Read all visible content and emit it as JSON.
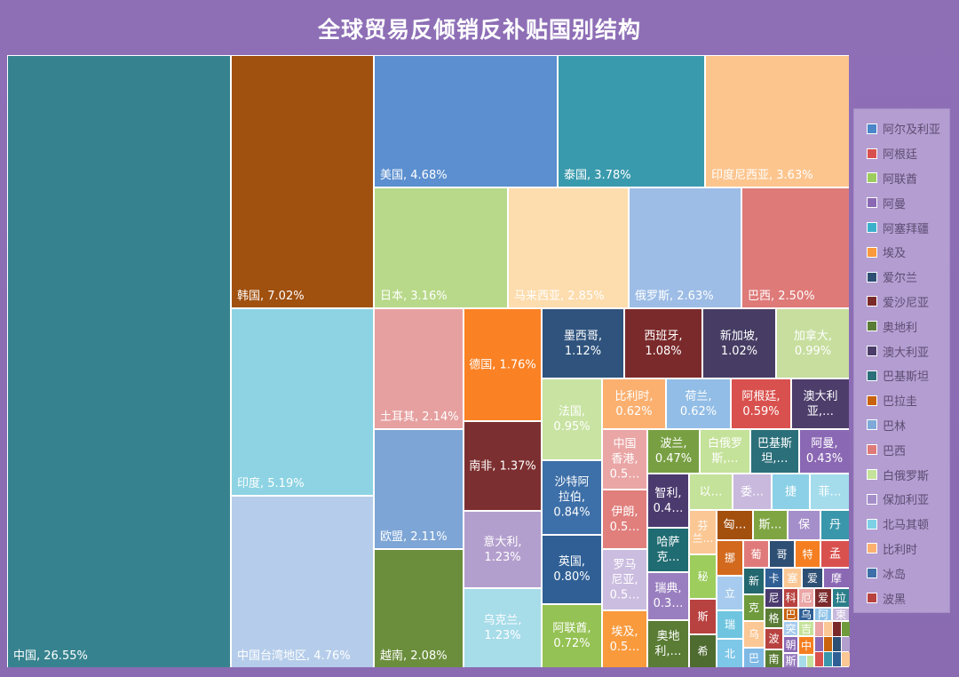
{
  "chart_data": {
    "type": "treemap",
    "title": "全球贸易反倾销反补贴国别结构",
    "unit": "%",
    "items": [
      {
        "name": "中国",
        "value": 26.55,
        "label": "中国, 26.55%",
        "color": "#36838f"
      },
      {
        "name": "韩国",
        "value": 7.02,
        "label": "韩国, 7.02%",
        "color": "#a0500f"
      },
      {
        "name": "印度",
        "value": 5.19,
        "label": "印度, 5.19%",
        "color": "#8dd3e3"
      },
      {
        "name": "中国台湾地区",
        "value": 4.76,
        "label": "中国台湾地区, 4.76%",
        "color": "#b5cdea"
      },
      {
        "name": "美国",
        "value": 4.68,
        "label": "美国, 4.68%",
        "color": "#5b8fcf"
      },
      {
        "name": "泰国",
        "value": 3.78,
        "label": "泰国, 3.78%",
        "color": "#3a9aad"
      },
      {
        "name": "印度尼西亚",
        "value": 3.63,
        "label": "印度尼西亚, 3.63%",
        "color": "#fdc58e"
      },
      {
        "name": "日本",
        "value": 3.16,
        "label": "日本, 3.16%",
        "color": "#b8d98a"
      },
      {
        "name": "马来西亚",
        "value": 2.85,
        "label": "马来西亚, 2.85%",
        "color": "#fddcad"
      },
      {
        "name": "俄罗斯",
        "value": 2.63,
        "label": "俄罗斯, 2.63%",
        "color": "#9dbde6"
      },
      {
        "name": "巴西",
        "value": 2.5,
        "label": "巴西, 2.50%",
        "color": "#de7a78"
      },
      {
        "name": "土耳其",
        "value": 2.14,
        "label": "土耳其, 2.14%",
        "color": "#e6a0a0"
      },
      {
        "name": "欧盟",
        "value": 2.11,
        "label": "欧盟, 2.11%",
        "color": "#7da5d6"
      },
      {
        "name": "越南",
        "value": 2.08,
        "label": "越南, 2.08%",
        "color": "#6b8e3c"
      },
      {
        "name": "德国",
        "value": 1.76,
        "label": "德国, 1.76%",
        "color": "#fa8124"
      },
      {
        "name": "南非",
        "value": 1.37,
        "label": "南非, 1.37%",
        "color": "#7c2f30"
      },
      {
        "name": "意大利",
        "value": 1.23,
        "label": "意大利,\n1.23%",
        "color": "#b39fcd"
      },
      {
        "name": "乌克兰",
        "value": 1.23,
        "label": "乌克兰,\n1.23%",
        "color": "#a7dce9"
      },
      {
        "name": "墨西哥",
        "value": 1.12,
        "label": "墨西哥,\n1.12%",
        "color": "#2f537d"
      },
      {
        "name": "西班牙",
        "value": 1.08,
        "label": "西班牙,\n1.08%",
        "color": "#7b2a2b"
      },
      {
        "name": "新加坡",
        "value": 1.02,
        "label": "新加坡,\n1.02%",
        "color": "#473d64"
      },
      {
        "name": "加拿大",
        "value": 0.99,
        "label": "加拿大,\n0.99%",
        "color": "#c7de9e"
      },
      {
        "name": "法国",
        "value": 0.95,
        "label": "法国,\n0.95%",
        "color": "#c8e3a2"
      },
      {
        "name": "比利时",
        "value": 0.62,
        "label": "比利时,\n0.62%",
        "color": "#fbb070"
      },
      {
        "name": "荷兰",
        "value": 0.62,
        "label": "荷兰,\n0.62%",
        "color": "#92bde6"
      },
      {
        "name": "阿根廷",
        "value": 0.59,
        "label": "阿根廷,\n0.59%",
        "color": "#d9514e"
      },
      {
        "name": "澳大利亚",
        "value": null,
        "label": "澳大利\n亚,…",
        "color": "#4c3d6b"
      },
      {
        "name": "中国香港",
        "value": null,
        "label": "中国\n香港,\n0.5…",
        "color": "#eaa5a5"
      },
      {
        "name": "波兰",
        "value": 0.47,
        "label": "波兰,\n0.47%",
        "color": "#78a043"
      },
      {
        "name": "白俄罗斯",
        "value": null,
        "label": "白俄罗\n斯,…",
        "color": "#c5e29a"
      },
      {
        "name": "巴基斯坦",
        "value": null,
        "label": "巴基斯\n坦,…",
        "color": "#2b6f7a"
      },
      {
        "name": "阿曼",
        "value": 0.43,
        "label": "阿曼,\n0.43%",
        "color": "#8b68b4"
      },
      {
        "name": "沙特阿拉伯",
        "value": 0.84,
        "label": "沙特阿\n拉伯,\n0.84%",
        "color": "#3d6fa8"
      },
      {
        "name": "英国",
        "value": 0.8,
        "label": "英国,\n0.80%",
        "color": "#2f5f95"
      },
      {
        "name": "阿联酋",
        "value": 0.72,
        "label": "阿联酋,\n0.72%",
        "color": "#95c254"
      },
      {
        "name": "伊朗",
        "value": null,
        "label": "伊朗,\n0.5…",
        "color": "#e07f7c"
      },
      {
        "name": "罗马尼亚",
        "value": null,
        "label": "罗马\n尼亚,\n0.5…",
        "color": "#cbbde0"
      },
      {
        "name": "埃及",
        "value": null,
        "label": "埃及,\n0.5…",
        "color": "#f99a3c"
      },
      {
        "name": "智利",
        "value": null,
        "label": "智利,\n0.4…",
        "color": "#4b3a6e"
      },
      {
        "name": "哈萨克斯坦",
        "value": null,
        "label": "哈萨\n克…",
        "color": "#1f6c72"
      },
      {
        "name": "瑞典",
        "value": null,
        "label": "瑞典,\n0.3…",
        "color": "#9a7fc0"
      },
      {
        "name": "奥地利",
        "value": null,
        "label": "奥地\n利,…",
        "color": "#5a7c35"
      },
      {
        "name": "以色列",
        "value": null,
        "label": "以…",
        "color": "#c5e29a"
      },
      {
        "name": "委内瑞拉",
        "value": null,
        "label": "委…",
        "color": "#c8b9dd"
      },
      {
        "name": "捷克",
        "value": null,
        "label": "捷",
        "color": "#8bd0e6"
      },
      {
        "name": "菲律宾",
        "value": null,
        "label": "菲…",
        "color": "#a4dcec"
      },
      {
        "name": "芬兰",
        "value": null,
        "label": "芬\n兰…",
        "color": "#fbc794"
      },
      {
        "name": "匈牙利",
        "value": null,
        "label": "匈…",
        "color": "#a3500f"
      },
      {
        "name": "斯洛文尼亚",
        "value": null,
        "label": "斯…",
        "color": "#7fa543"
      },
      {
        "name": "保加利亚",
        "value": null,
        "label": "保",
        "color": "#a58fcb"
      },
      {
        "name": "丹麦",
        "value": null,
        "label": "丹",
        "color": "#3a97ab"
      },
      {
        "name": "秘鲁",
        "value": null,
        "label": "秘",
        "color": "#9ccd5d"
      },
      {
        "name": "斯里兰卡",
        "value": null,
        "label": "斯",
        "color": "#b84240"
      },
      {
        "name": "希腊",
        "value": null,
        "label": "希",
        "color": "#4e6b30"
      },
      {
        "name": "挪威",
        "value": null,
        "label": "挪",
        "color": "#d2691d"
      },
      {
        "name": "立陶宛",
        "value": null,
        "label": "立",
        "color": "#a7cbee"
      },
      {
        "name": "瑞士",
        "value": null,
        "label": "瑞",
        "color": "#6fc5e0"
      },
      {
        "name": "北马其顿",
        "value": null,
        "label": "北",
        "color": "#7dc7e8"
      },
      {
        "name": "葡萄牙",
        "value": null,
        "label": "葡",
        "color": "#e07a7a"
      },
      {
        "name": "哥伦比亚",
        "value": null,
        "label": "哥",
        "color": "#2e4f74"
      },
      {
        "name": "特立尼达和多巴哥",
        "value": null,
        "label": "特",
        "color": "#f57f20"
      },
      {
        "name": "孟加拉国",
        "value": null,
        "label": "孟",
        "color": "#d9514e"
      },
      {
        "name": "新西兰",
        "value": null,
        "label": "新",
        "color": "#23676f"
      },
      {
        "name": "克罗地亚",
        "value": null,
        "label": "克",
        "color": "#6f9b3d"
      },
      {
        "name": "乌兹别克斯坦",
        "value": null,
        "label": "乌",
        "color": "#fbc794"
      },
      {
        "name": "巴林",
        "value": null,
        "label": "巴",
        "color": "#7fb9e6"
      },
      {
        "name": "卡塔尔",
        "value": null,
        "label": "卡",
        "color": "#2f5f95"
      },
      {
        "name": "塞尔维亚",
        "value": null,
        "label": "塞",
        "color": "#fbc794"
      },
      {
        "name": "爱尔兰",
        "value": null,
        "label": "爱",
        "color": "#2e4f74"
      },
      {
        "name": "摩洛哥",
        "value": null,
        "label": "摩",
        "color": "#8b68b4"
      },
      {
        "name": "尼日利亚",
        "value": null,
        "label": "尼",
        "color": "#4b3a6e"
      },
      {
        "name": "科威特",
        "value": null,
        "label": "科",
        "color": "#b84240"
      },
      {
        "name": "厄瓜多尔",
        "value": null,
        "label": "厄",
        "color": "#eaa5a5"
      },
      {
        "name": "爱沙尼亚",
        "value": null,
        "label": "爱",
        "color": "#7b2a2b"
      },
      {
        "name": "拉脱维亚",
        "value": null,
        "label": "拉",
        "color": "#2b7f8a"
      },
      {
        "name": "格鲁吉亚",
        "value": null,
        "label": "格",
        "color": "#5a7c35"
      },
      {
        "name": "巴拉圭",
        "value": null,
        "label": "巴",
        "color": "#c9630e"
      },
      {
        "name": "乌拉圭",
        "value": null,
        "label": "乌",
        "color": "#2f5f95"
      },
      {
        "name": "阿尔及利亚",
        "value": null,
        "label": "阿",
        "color": "#8bc0e6"
      },
      {
        "name": "柬埔寨",
        "value": null,
        "label": "柬",
        "color": "#c8b9dd"
      },
      {
        "name": "波黑",
        "value": null,
        "label": "波",
        "color": "#b84240"
      },
      {
        "name": "南非关税同盟",
        "value": null,
        "label": "南",
        "color": "#5a7c35"
      },
      {
        "name": "突尼斯",
        "value": null,
        "label": "突",
        "color": "#a7cbee"
      },
      {
        "name": "吉尔吉斯斯坦",
        "value": null,
        "label": "吉",
        "color": "#c5e29a"
      },
      {
        "name": "朝鲜",
        "value": null,
        "label": "朝",
        "color": "#8b68b4"
      },
      {
        "name": "斯洛伐克",
        "value": null,
        "label": "斯",
        "color": "#9a7fc0"
      },
      {
        "name": "中非",
        "value": null,
        "label": "中",
        "color": "#f57f20"
      }
    ],
    "minor_colors": [
      "#eaa5a5",
      "#fbc794",
      "#7b2a2b",
      "#6f9b3d",
      "#8b68b4",
      "#c9630e",
      "#2e4f74",
      "#b39fcd",
      "#d9514e",
      "#3a97ab",
      "#2f5f95",
      "#fbc794",
      "#a7dce9",
      "#c5e29a",
      "#5a7c35",
      "#e07a7a"
    ],
    "legend": {
      "position": "right",
      "items": [
        {
          "name": "阿尔及利亚",
          "color": "#4a86c8"
        },
        {
          "name": "阿根廷",
          "color": "#d9514e"
        },
        {
          "name": "阿联酋",
          "color": "#9ccd5d"
        },
        {
          "name": "阿曼",
          "color": "#8b68b4"
        },
        {
          "name": "阿塞拜疆",
          "color": "#3bb0cc"
        },
        {
          "name": "埃及",
          "color": "#f99a3c"
        },
        {
          "name": "爱尔兰",
          "color": "#2e4f74"
        },
        {
          "name": "爱沙尼亚",
          "color": "#7b2a2b"
        },
        {
          "name": "奥地利",
          "color": "#5a7c35"
        },
        {
          "name": "澳大利亚",
          "color": "#4c3d6b"
        },
        {
          "name": "巴基斯坦",
          "color": "#2b6f7a"
        },
        {
          "name": "巴拉圭",
          "color": "#c9630e"
        },
        {
          "name": "巴林",
          "color": "#7fa9d8"
        },
        {
          "name": "巴西",
          "color": "#de7a78"
        },
        {
          "name": "白俄罗斯",
          "color": "#c5e29a"
        },
        {
          "name": "保加利亚",
          "color": "#a58fcb"
        },
        {
          "name": "北马其顿",
          "color": "#7dd0e6"
        },
        {
          "name": "比利时",
          "color": "#fbb070"
        },
        {
          "name": "冰岛",
          "color": "#3d6fa8"
        },
        {
          "name": "波黑",
          "color": "#b84240"
        }
      ]
    }
  }
}
